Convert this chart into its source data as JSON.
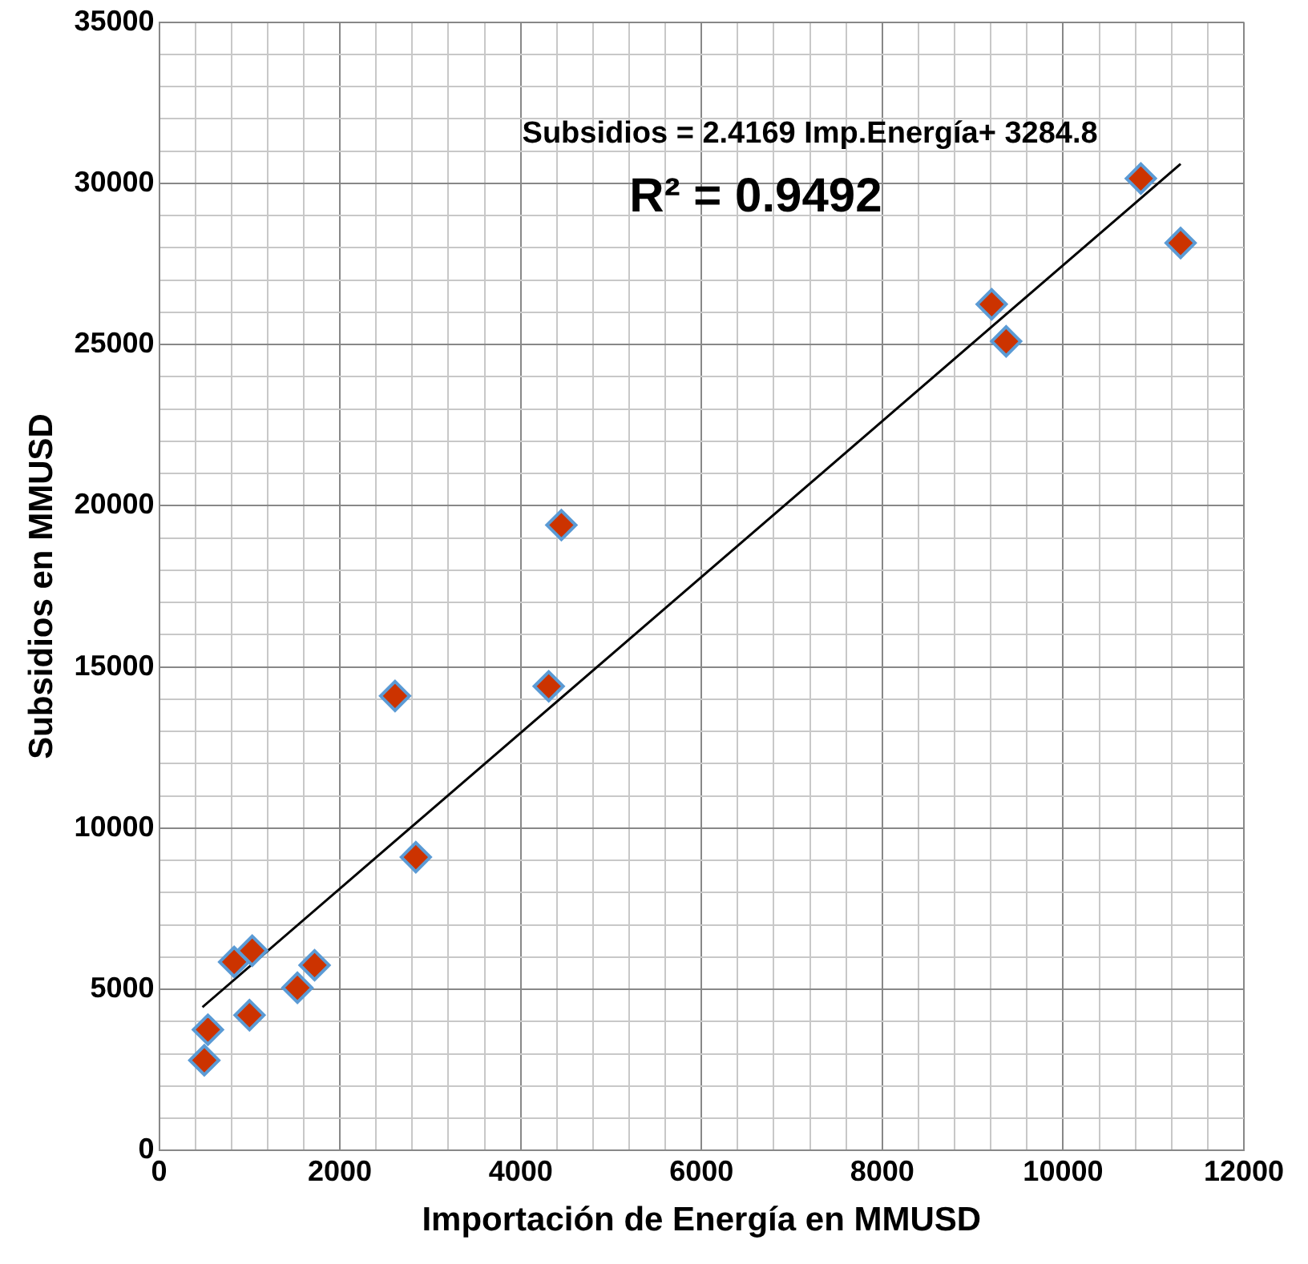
{
  "chart_data": {
    "type": "scatter",
    "xlabel": "Importación de Energía en MMUSD",
    "ylabel": "Subsidios en MMUSD",
    "annotations": [
      "Subsidios = 2.4169 Imp.Energía+ 3284.8",
      "R² = 0.9492"
    ],
    "series": [
      {
        "color": "#cc3300",
        "marker": "diamond",
        "x": [
          500,
          540,
          830,
          1030,
          1000,
          1530,
          1720,
          2610,
          2840,
          4310,
          4450,
          9210,
          9370,
          10860,
          11300
        ],
        "values": [
          2800,
          3750,
          5850,
          6200,
          4200,
          5050,
          5750,
          14100,
          9100,
          14400,
          19400,
          26250,
          25100,
          30150,
          28150
        ]
      },
      {
        "type": "line",
        "color": "#000000",
        "marker": "none",
        "line_style": "solid",
        "x": [
          480,
          11300
        ],
        "values": [
          4450,
          30600
        ]
      }
    ],
    "xlim": [
      0,
      12000
    ],
    "ylim": [
      0,
      35000
    ],
    "xticks": [
      0,
      {
        "value": 400,
        "label": null
      },
      {
        "value": 800,
        "label": null
      },
      {
        "value": 1200,
        "label": null
      },
      {
        "value": 1600,
        "label": null
      },
      2000,
      {
        "value": 2400,
        "label": null
      },
      {
        "value": 2800,
        "label": null
      },
      {
        "value": 3200,
        "label": null
      },
      {
        "value": 3600,
        "label": null
      },
      4000,
      {
        "value": 4400,
        "label": null
      },
      {
        "value": 4800,
        "label": null
      },
      {
        "value": 5200,
        "label": null
      },
      {
        "value": 5600,
        "label": null
      },
      6000,
      {
        "value": 6400,
        "label": null
      },
      {
        "value": 6800,
        "label": null
      },
      {
        "value": 7200,
        "label": null
      },
      {
        "value": 7600,
        "label": null
      },
      8000,
      {
        "value": 8400,
        "label": null
      },
      {
        "value": 8800,
        "label": null
      },
      {
        "value": 9200,
        "label": null
      },
      {
        "value": 9600,
        "label": null
      },
      10000,
      {
        "value": 10400,
        "label": null
      },
      {
        "value": 10800,
        "label": null
      },
      {
        "value": 11200,
        "label": null
      },
      {
        "value": 11600,
        "label": null
      },
      12000
    ],
    "yticks": [
      0,
      {
        "value": 1000,
        "label": null
      },
      {
        "value": 2000,
        "label": null
      },
      {
        "value": 3000,
        "label": null
      },
      {
        "value": 4000,
        "label": null
      },
      5000,
      {
        "value": 6000,
        "label": null
      },
      {
        "value": 7000,
        "label": null
      },
      {
        "value": 8000,
        "label": null
      },
      {
        "value": 9000,
        "label": null
      },
      10000,
      {
        "value": 11000,
        "label": null
      },
      {
        "value": 12000,
        "label": null
      },
      {
        "value": 13000,
        "label": null
      },
      {
        "value": 14000,
        "label": null
      },
      15000,
      {
        "value": 16000,
        "label": null
      },
      {
        "value": 17000,
        "label": null
      },
      {
        "value": 18000,
        "label": null
      },
      {
        "value": 19000,
        "label": null
      },
      20000,
      {
        "value": 21000,
        "label": null
      },
      {
        "value": 22000,
        "label": null
      },
      {
        "value": 23000,
        "label": null
      },
      {
        "value": 24000,
        "label": null
      },
      25000,
      {
        "value": 26000,
        "label": null
      },
      {
        "value": 27000,
        "label": null
      },
      {
        "value": 28000,
        "label": null
      },
      {
        "value": 29000,
        "label": null
      },
      30000,
      {
        "value": 31000,
        "label": null
      },
      {
        "value": 32000,
        "label": null
      },
      {
        "value": 33000,
        "label": null
      },
      {
        "value": 34000,
        "label": null
      },
      35000
    ],
    "grid": true,
    "legend": false
  }
}
